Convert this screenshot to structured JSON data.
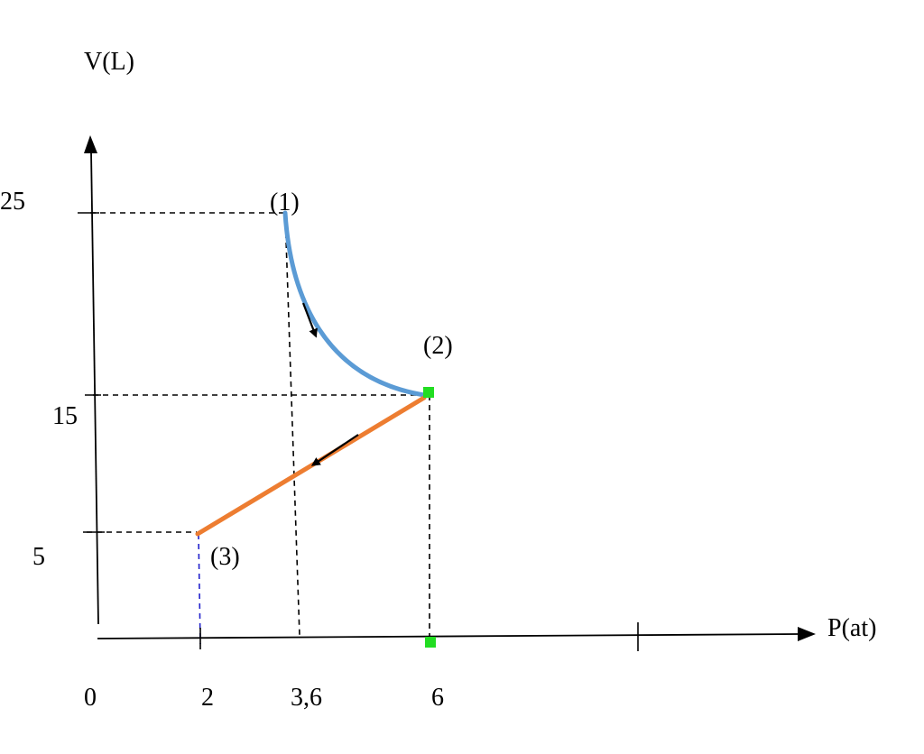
{
  "axes": {
    "y_label": "V(L)",
    "x_label": "P(at)",
    "x_ticks": [
      "0",
      "2",
      "3,6",
      "6"
    ],
    "y_ticks": [
      "25",
      "15",
      "5"
    ]
  },
  "states": [
    {
      "label": "(1)",
      "P": 3.6,
      "V": 25
    },
    {
      "label": "(2)",
      "P": 6,
      "V": 15
    },
    {
      "label": "(3)",
      "P": 2,
      "V": 5
    }
  ],
  "processes": [
    {
      "from": "(1)",
      "to": "(2)",
      "shape": "curve",
      "color": "#5b9bd5"
    },
    {
      "from": "(2)",
      "to": "(3)",
      "shape": "straight",
      "color": "#ed7d31"
    }
  ],
  "colors": {
    "marker": "#22dd22",
    "guide": "#000000",
    "guide_blue": "#2222cc"
  }
}
